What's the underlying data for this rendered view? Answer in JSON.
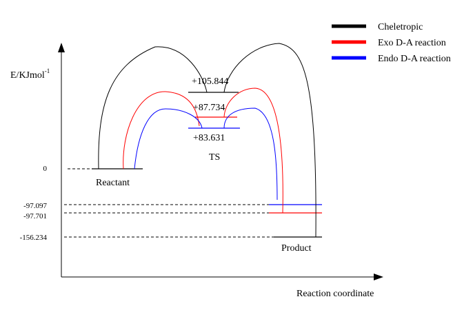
{
  "axes": {
    "y_label_main": "E/KJmol",
    "y_label_sup": "-1",
    "x_label": "Reaction coordinate"
  },
  "ticks": [
    {
      "label": "0",
      "value": 0
    },
    {
      "label": "-97.097",
      "value": -97.097
    },
    {
      "label": "-97.701",
      "value": -97.701
    },
    {
      "label": "-156.234",
      "value": -156.234
    }
  ],
  "levels": {
    "reactant": "Reactant",
    "ts": "TS",
    "product": "Product"
  },
  "ts_values": {
    "chel": "+105.844",
    "exo": "+87.734",
    "endo": "+83.631"
  },
  "legend": [
    {
      "label": "Cheletropic",
      "color": "#000000"
    },
    {
      "label": "Exo D-A reaction",
      "color": "#ff0000"
    },
    {
      "label": "Endo D-A reaction",
      "color": "#0000ff"
    }
  ],
  "colors": {
    "cheletropic": "#000000",
    "exo": "#ff0000",
    "endo": "#0000ff"
  }
}
